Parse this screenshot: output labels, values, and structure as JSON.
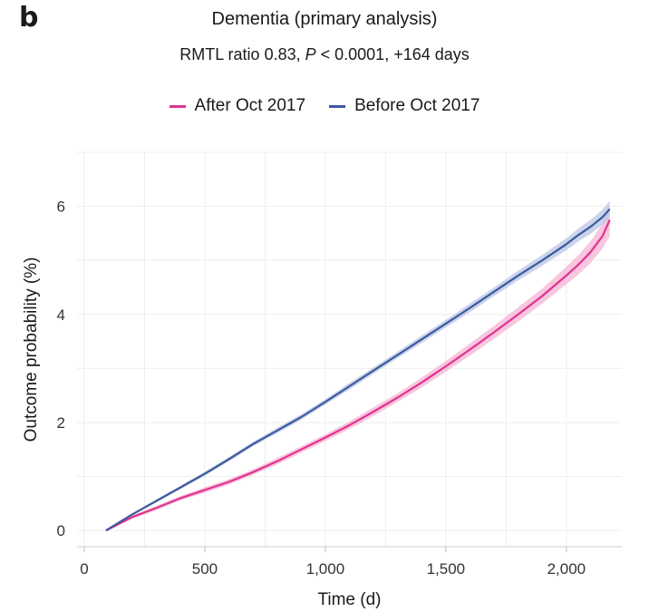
{
  "panel_label": "b",
  "chart_data": {
    "type": "line",
    "title": "Dementia (primary analysis)",
    "subtitle_prefix": "RMTL ratio 0.83, ",
    "subtitle_italic": "P",
    "subtitle_suffix": " < 0.0001, +164 days",
    "xlabel": "Time (d)",
    "ylabel": "Outcome probability (%)",
    "xlim": [
      -30,
      2230
    ],
    "ylim": [
      -0.3,
      7.0
    ],
    "xticks": [
      0,
      500,
      1000,
      1500,
      2000
    ],
    "xtick_labels": [
      "0",
      "500",
      "1,000",
      "1,500",
      "2,000"
    ],
    "yticks": [
      0,
      2,
      4,
      6
    ],
    "ytick_labels": [
      "0",
      "2",
      "4",
      "6"
    ],
    "grid": true,
    "legend_position": "top",
    "series": [
      {
        "name": "After Oct 2017",
        "color": "#e0338f",
        "band_color": "#f5b3d4",
        "x": [
          90,
          200,
          300,
          400,
          500,
          600,
          700,
          800,
          900,
          1000,
          1100,
          1200,
          1300,
          1400,
          1500,
          1600,
          1700,
          1800,
          1900,
          2000,
          2050,
          2100,
          2150,
          2180
        ],
        "y": [
          0.0,
          0.25,
          0.42,
          0.6,
          0.75,
          0.9,
          1.08,
          1.28,
          1.5,
          1.72,
          1.95,
          2.2,
          2.46,
          2.74,
          3.04,
          3.35,
          3.67,
          4.0,
          4.34,
          4.72,
          4.92,
          5.15,
          5.45,
          5.75
        ],
        "lower": [
          0.0,
          0.22,
          0.38,
          0.56,
          0.7,
          0.85,
          1.03,
          1.22,
          1.44,
          1.66,
          1.88,
          2.12,
          2.38,
          2.65,
          2.94,
          3.24,
          3.55,
          3.87,
          4.2,
          4.56,
          4.74,
          4.95,
          5.22,
          5.45
        ],
        "upper": [
          0.0,
          0.28,
          0.46,
          0.64,
          0.8,
          0.95,
          1.13,
          1.34,
          1.56,
          1.78,
          2.02,
          2.28,
          2.54,
          2.83,
          3.14,
          3.46,
          3.79,
          4.13,
          4.48,
          4.88,
          5.1,
          5.35,
          5.68,
          6.02
        ]
      },
      {
        "name": "Before Oct 2017",
        "color": "#3d5a9e",
        "band_color": "#b9c6e6",
        "x": [
          90,
          200,
          300,
          400,
          500,
          600,
          700,
          800,
          900,
          1000,
          1100,
          1200,
          1300,
          1400,
          1500,
          1600,
          1700,
          1800,
          1900,
          2000,
          2050,
          2100,
          2150,
          2180
        ],
        "y": [
          0.0,
          0.3,
          0.55,
          0.8,
          1.05,
          1.32,
          1.6,
          1.85,
          2.1,
          2.38,
          2.67,
          2.96,
          3.25,
          3.54,
          3.83,
          4.12,
          4.42,
          4.72,
          5.0,
          5.3,
          5.47,
          5.62,
          5.8,
          5.95
        ],
        "lower": [
          0.0,
          0.28,
          0.52,
          0.77,
          1.01,
          1.28,
          1.56,
          1.8,
          2.05,
          2.33,
          2.61,
          2.9,
          3.19,
          3.47,
          3.76,
          4.04,
          4.34,
          4.63,
          4.9,
          5.19,
          5.35,
          5.49,
          5.66,
          5.8
        ],
        "upper": [
          0.0,
          0.32,
          0.58,
          0.83,
          1.09,
          1.36,
          1.64,
          1.9,
          2.15,
          2.43,
          2.73,
          3.02,
          3.31,
          3.61,
          3.9,
          4.2,
          4.5,
          4.81,
          5.1,
          5.41,
          5.59,
          5.75,
          5.94,
          6.1
        ]
      }
    ]
  }
}
